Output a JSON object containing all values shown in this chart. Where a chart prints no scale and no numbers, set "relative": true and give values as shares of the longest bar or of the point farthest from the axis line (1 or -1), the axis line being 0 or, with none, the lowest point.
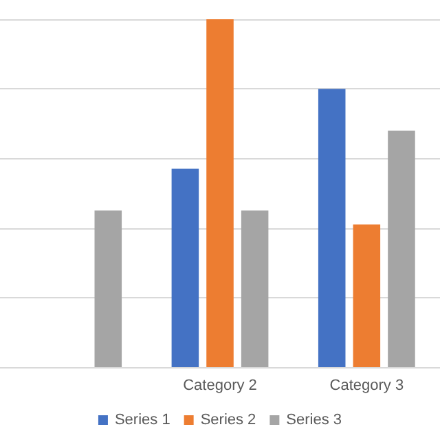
{
  "chart_data": {
    "type": "bar",
    "relative": true,
    "categories": [
      null,
      "Category 2",
      "Category 3"
    ],
    "series": [
      {
        "name": "Series 1",
        "color": "#4472c4",
        "values": [
          null,
          0.57,
          0.8
        ]
      },
      {
        "name": "Series 2",
        "color": "#ed7d31",
        "values": [
          null,
          1,
          0.41
        ]
      },
      {
        "name": "Series 3",
        "color": "#a5a5a5",
        "values": [
          0.45,
          0.45,
          0.68
        ]
      }
    ],
    "grid": "y",
    "legend": "bottom"
  }
}
